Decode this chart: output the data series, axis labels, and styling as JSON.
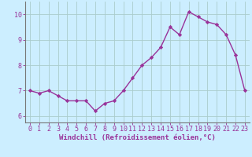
{
  "x": [
    0,
    1,
    2,
    3,
    4,
    5,
    6,
    7,
    8,
    9,
    10,
    11,
    12,
    13,
    14,
    15,
    16,
    17,
    18,
    19,
    20,
    21,
    22,
    23
  ],
  "y": [
    7.0,
    6.9,
    7.0,
    6.8,
    6.6,
    6.6,
    6.6,
    6.2,
    6.5,
    6.6,
    7.0,
    7.5,
    8.0,
    8.3,
    8.7,
    9.5,
    9.2,
    10.1,
    9.9,
    9.7,
    9.6,
    9.2,
    8.4,
    7.0
  ],
  "line_color": "#993399",
  "marker": "D",
  "marker_size": 2.2,
  "bg_color": "#cceeff",
  "grid_color": "#aacccc",
  "xlabel": "Windchill (Refroidissement éolien,°C)",
  "xlabel_color": "#993399",
  "tick_color": "#993399",
  "spine_color": "#777777",
  "ylim": [
    5.75,
    10.5
  ],
  "xlim": [
    -0.5,
    23.5
  ],
  "yticks": [
    6,
    7,
    8,
    9,
    10
  ],
  "xticks": [
    0,
    1,
    2,
    3,
    4,
    5,
    6,
    7,
    8,
    9,
    10,
    11,
    12,
    13,
    14,
    15,
    16,
    17,
    18,
    19,
    20,
    21,
    22,
    23
  ],
  "xlabel_fontsize": 6.5,
  "tick_fontsize": 6.0,
  "line_width": 1.0
}
